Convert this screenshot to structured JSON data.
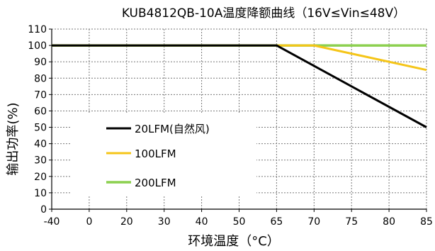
{
  "chart_data": {
    "type": "line",
    "title": "KUB4812QB-10A温度降额曲线（16V≤Vin≤48V）",
    "xlabel": "环境温度（°C）",
    "ylabel": "输出功率(%)",
    "xlim": [
      -40,
      85
    ],
    "ylim": [
      0,
      110
    ],
    "x_ticks": [
      -40,
      0,
      20,
      30,
      40,
      50,
      65,
      70,
      75,
      80,
      85
    ],
    "x_tick_labels": [
      "-40",
      "0",
      "20",
      "30",
      "40",
      "50",
      "65",
      "70",
      "75",
      "80",
      "85"
    ],
    "y_ticks": [
      0,
      10,
      20,
      30,
      40,
      50,
      60,
      70,
      80,
      90,
      100,
      110
    ],
    "y_tick_labels": [
      "0",
      "10",
      "20",
      "30",
      "40",
      "50",
      "60",
      "70",
      "80",
      "90",
      "100",
      "110"
    ],
    "grid": "dashed",
    "legend_position": "left-inside",
    "series": [
      {
        "name": "20LFM(自然风)",
        "color": "#000000",
        "x": [
          -40,
          65,
          85
        ],
        "y": [
          100,
          100,
          50
        ]
      },
      {
        "name": "100LFM",
        "color": "#f5c518",
        "x": [
          -40,
          70,
          85
        ],
        "y": [
          100,
          100,
          85
        ]
      },
      {
        "name": "200LFM",
        "color": "#8cd04f",
        "x": [
          -40,
          85
        ],
        "y": [
          100,
          100
        ]
      }
    ]
  }
}
